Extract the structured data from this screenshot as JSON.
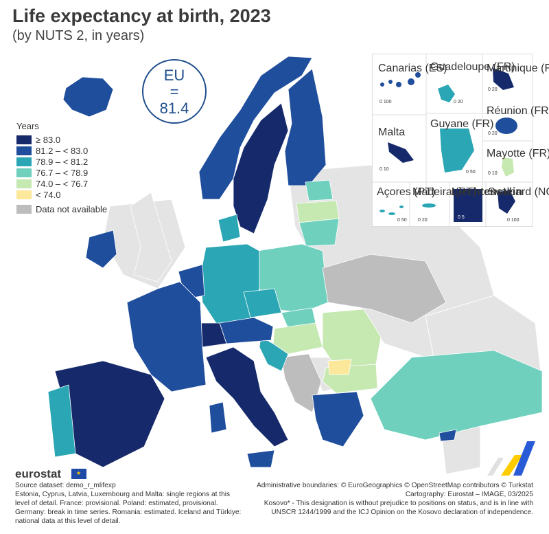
{
  "header": {
    "title": "Life expectancy at birth, 2023",
    "subtitle": "(by NUTS 2, in years)"
  },
  "eu_value": {
    "label": "EU",
    "equals": "=",
    "value": "81.4"
  },
  "legend": {
    "title": "Years",
    "items": [
      {
        "label": "≥ 83.0",
        "color": "#162a6b"
      },
      {
        "label": "81.2 – < 83.0",
        "color": "#1f4e9c"
      },
      {
        "label": "78.9 – < 81.2",
        "color": "#2aa6b5"
      },
      {
        "label": "76.7 – < 78.9",
        "color": "#6fd0be"
      },
      {
        "label": "74.0 – < 76.7",
        "color": "#c6e8b1"
      },
      {
        "label": "< 74.0",
        "color": "#fbe89a"
      }
    ],
    "na": {
      "label": "Data not available",
      "color": "#bdbdbd"
    }
  },
  "insets": [
    {
      "name": "Canarias (ES)",
      "scale": "0  100"
    },
    {
      "name": "Guadeloupe (FR)",
      "scale": "0  20"
    },
    {
      "name": "Martinique (FR)",
      "scale": "0  20"
    },
    {
      "name": "Réunion (FR)",
      "scale": "0  20"
    },
    {
      "name": "Malta",
      "scale": "0  10"
    },
    {
      "name": "Guyane (FR)",
      "scale": "0  50"
    },
    {
      "name": "Mayotte (FR)",
      "scale": "0  10"
    },
    {
      "name": "Açores (PT)",
      "scale": "0  50"
    },
    {
      "name": "Madeira (PT)",
      "scale": "0  20"
    },
    {
      "name": "Liechtenstein",
      "scale": "0  5"
    },
    {
      "name": "Svalbard (NO)",
      "scale": "0  100"
    }
  ],
  "colors": {
    "sea": "#ffffff",
    "land_outside": "#e4e4e4",
    "accent": "#1f4e8c"
  },
  "footer": {
    "logo": "eurostat",
    "left": [
      "Source dataset: demo_r_mlifexp",
      "Estonia, Cyprus, Latvia, Luxembourg and Malta: single regions at this level of detail. France: provisional. Poland: estimated, provisional.",
      "Germany: break in time series. Romania: estimated. Iceland and Türkiye: national data at this level of detail."
    ],
    "right": [
      "Administrative boundaries: © EuroGeographics © OpenStreetMap contributors © Turkstat",
      "Cartography: Eurostat – IMAGE, 03/2025",
      "Kosovo* - This designation is without prejudice to positions on status, and is in line with UNSCR 1244/1999 and the ICJ Opinion on the Kosovo declaration of independence."
    ]
  }
}
